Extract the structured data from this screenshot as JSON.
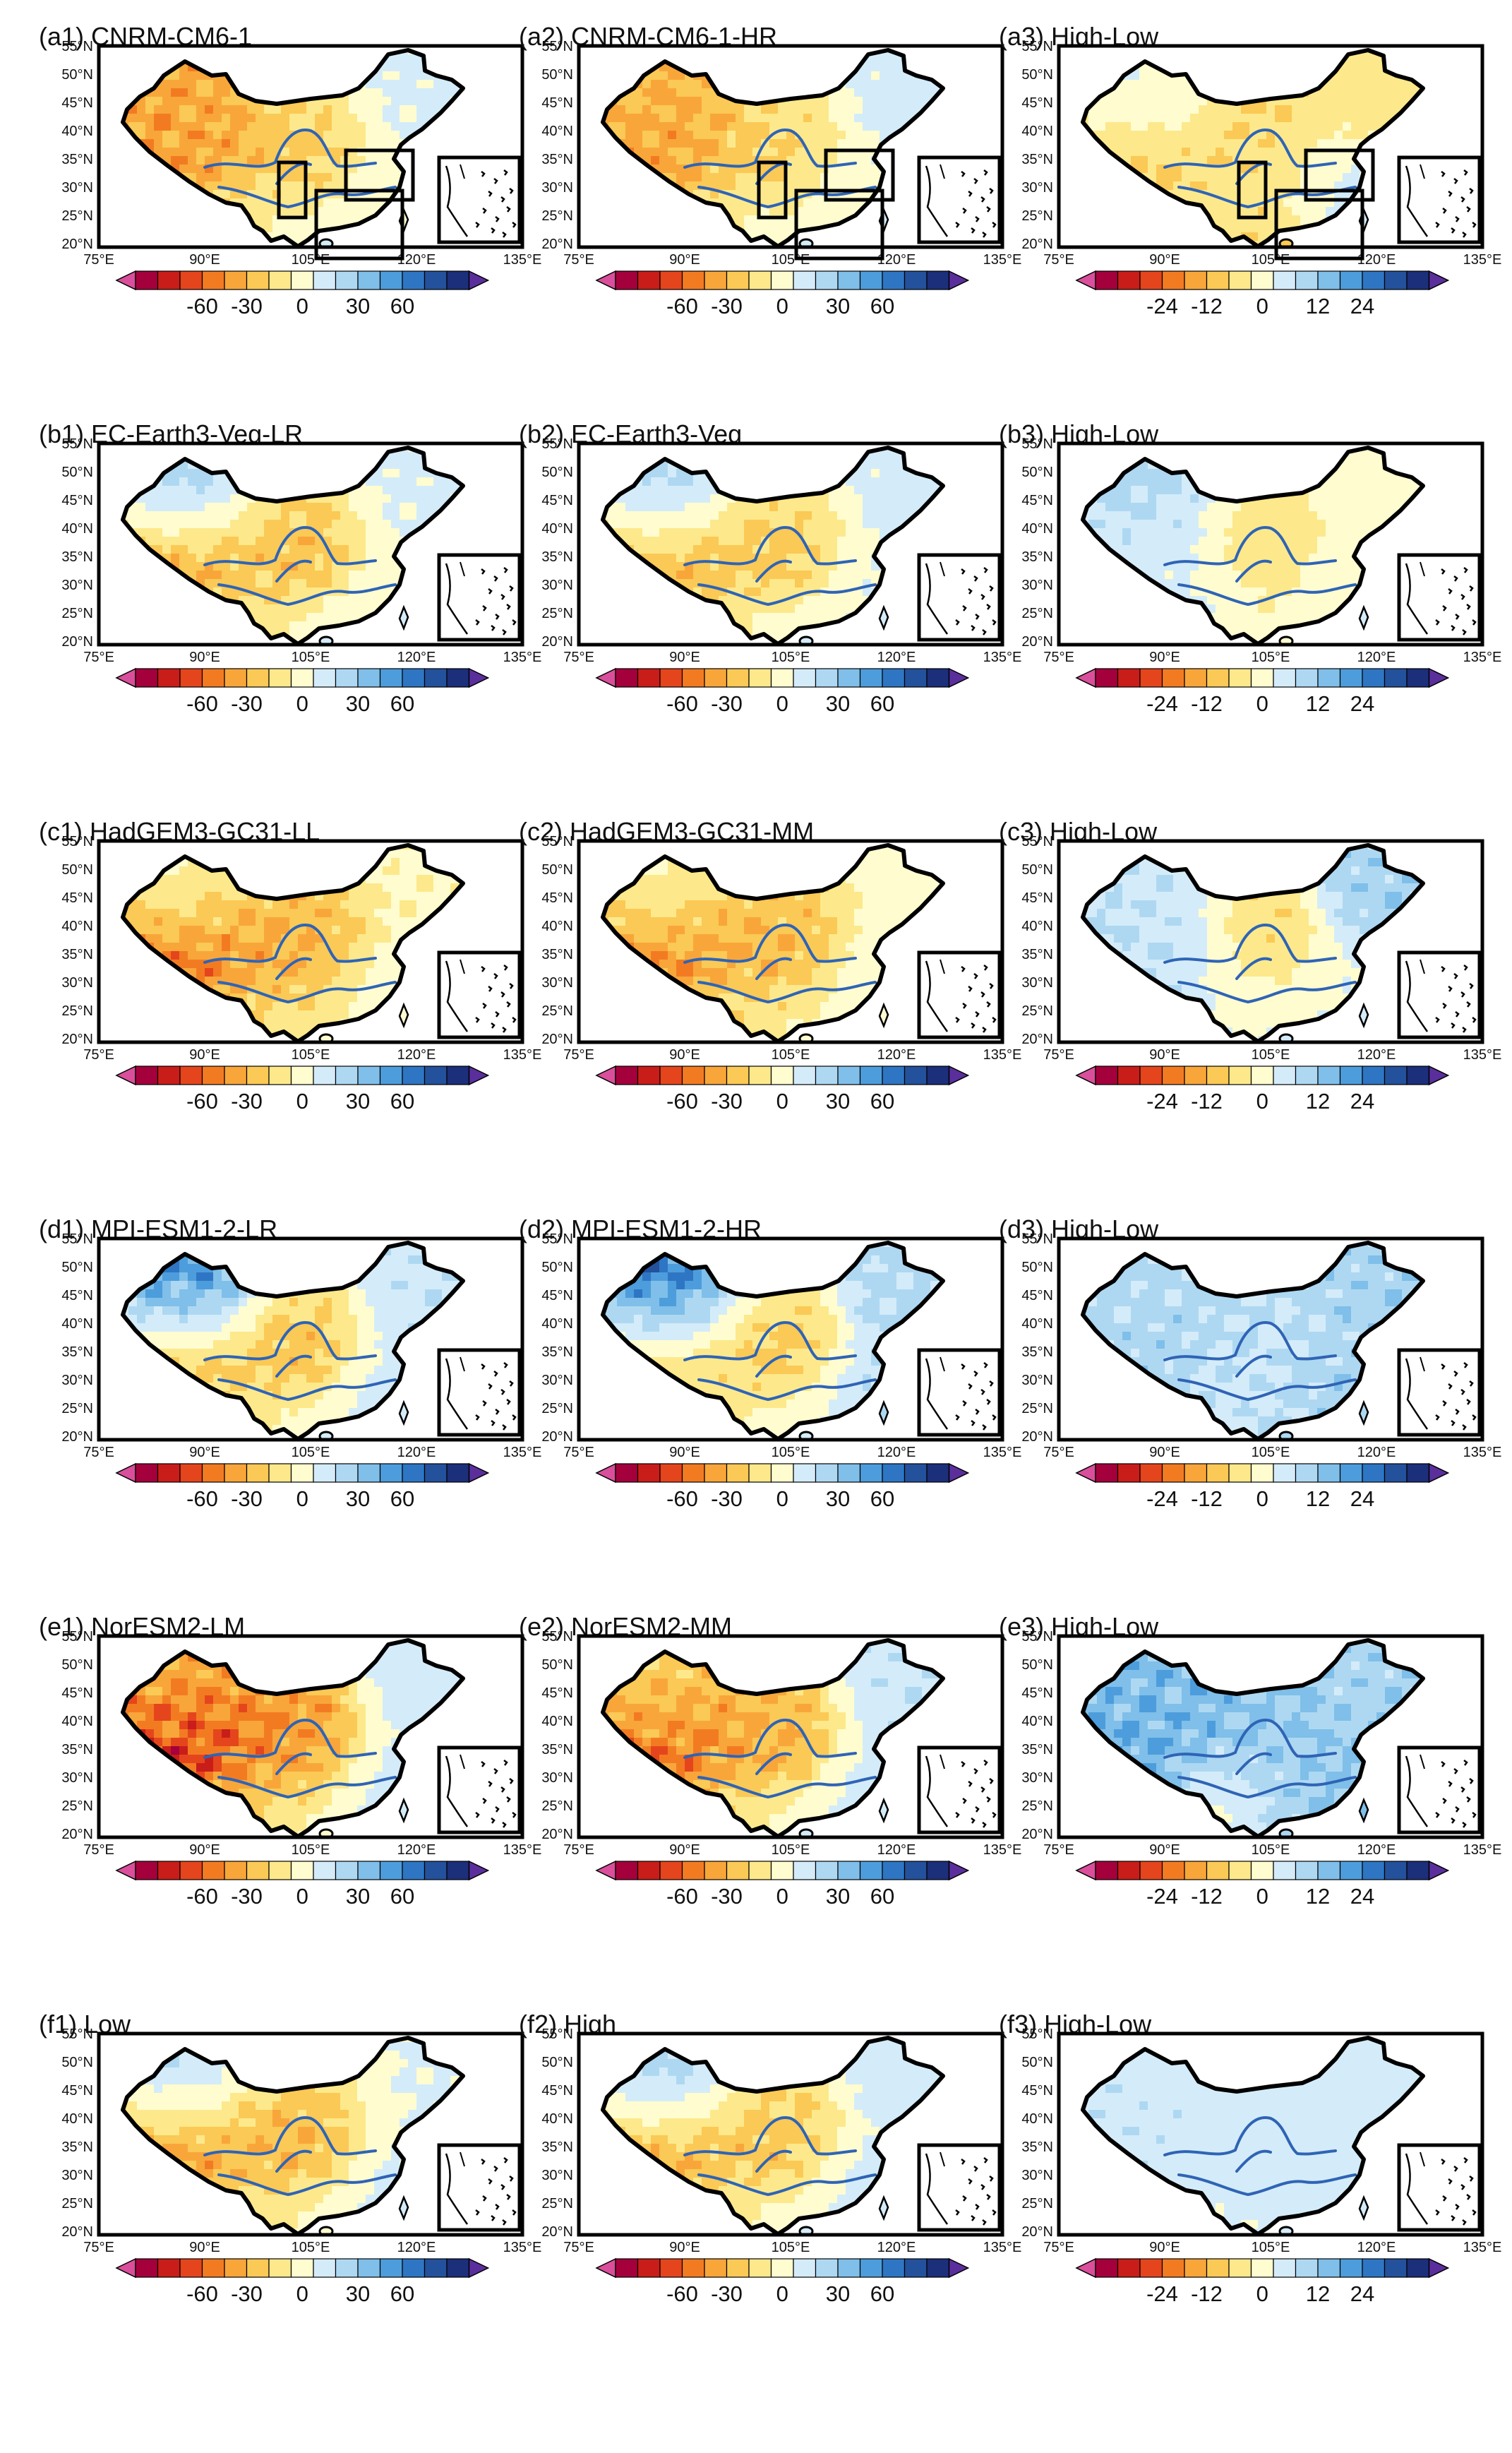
{
  "figure": {
    "lon_ticks": [
      "75°E",
      "90°E",
      "105°E",
      "120°E",
      "135°E"
    ],
    "lat_ticks": [
      "55°N",
      "50°N",
      "45°N",
      "40°N",
      "35°N",
      "30°N",
      "25°N",
      "20°N"
    ],
    "full_colorbar": {
      "labels": [
        "-60",
        "-30",
        "0",
        "30",
        "60"
      ],
      "colors": [
        "#a4003c",
        "#c91d1a",
        "#e5451c",
        "#f27b22",
        "#f8a63a",
        "#fbc955",
        "#fde98b",
        "#fffcd0",
        "#d4ecf9",
        "#aed8f2",
        "#7fbfe9",
        "#4d9ddc",
        "#2e76c4",
        "#24519c",
        "#1b2f7a"
      ],
      "min_color": "#d94f9b",
      "max_color": "#5a2f9c"
    },
    "diff_colorbar": {
      "labels": [
        "-24",
        "-12",
        "0",
        "12",
        "24"
      ],
      "colors": [
        "#a4003c",
        "#c91d1a",
        "#e5451c",
        "#f27b22",
        "#f8a63a",
        "#fbc955",
        "#fde98b",
        "#fffcd0",
        "#d4ecf9",
        "#aed8f2",
        "#7fbfe9",
        "#4d9ddc",
        "#2e76c4",
        "#24519c",
        "#1b2f7a"
      ],
      "min_color": "#d94f9b",
      "max_color": "#5a2f9c"
    },
    "panels": [
      {
        "label": "(a1) CNRM-CM6-1",
        "kind": "full",
        "pattern": [
          -25,
          -30,
          -10,
          -25,
          6,
          4,
          6,
          1
        ]
      },
      {
        "label": "(a2) CNRM-CM6-1-HR",
        "kind": "full",
        "pattern": [
          -22,
          -28,
          -8,
          -22,
          7,
          5,
          5,
          2
        ]
      },
      {
        "label": "(a3) High-Low",
        "kind": "diff",
        "pattern": [
          4,
          -8,
          -6,
          -4,
          -3,
          3,
          -6,
          -3
        ]
      },
      {
        "label": "(b1) EC-Earth3-Veg-LR",
        "kind": "full",
        "pattern": [
          30,
          -35,
          -12,
          -28,
          6,
          5,
          5,
          -3
        ]
      },
      {
        "label": "(b2) EC-Earth3-Veg",
        "kind": "full",
        "pattern": [
          28,
          -33,
          -10,
          -25,
          7,
          6,
          6,
          -2
        ]
      },
      {
        "label": "(b3) High-Low",
        "kind": "diff",
        "pattern": [
          8,
          2,
          -4,
          -6,
          1,
          2,
          -1,
          3
        ]
      },
      {
        "label": "(c1) HadGEM3-GC31-LL",
        "kind": "full",
        "pattern": [
          5,
          -45,
          -18,
          -30,
          -4,
          3,
          -3,
          -6
        ]
      },
      {
        "label": "(c2) HadGEM3-GC31-MM",
        "kind": "full",
        "pattern": [
          4,
          -40,
          -16,
          -28,
          -3,
          4,
          -2,
          -4
        ]
      },
      {
        "label": "(c3) High-Low",
        "kind": "diff",
        "pattern": [
          5,
          6,
          -6,
          -5,
          8,
          2,
          3,
          2
        ]
      },
      {
        "label": "(d1) MPI-ESM1-2-LR",
        "kind": "full",
        "pattern": [
          55,
          -30,
          -10,
          -30,
          12,
          12,
          6,
          -2
        ]
      },
      {
        "label": "(d2) MPI-ESM1-2-HR",
        "kind": "full",
        "pattern": [
          60,
          -25,
          -8,
          -28,
          16,
          15,
          8,
          0
        ]
      },
      {
        "label": "(d3) High-Low",
        "kind": "diff",
        "pattern": [
          6,
          8,
          6,
          4,
          8,
          8,
          6,
          4
        ]
      },
      {
        "label": "(e1) NorESM2-LM",
        "kind": "full",
        "pattern": [
          -20,
          -55,
          -25,
          -35,
          8,
          10,
          2,
          -5
        ]
      },
      {
        "label": "(e2) NorESM2-MM",
        "kind": "full",
        "pattern": [
          -10,
          -45,
          -18,
          -30,
          12,
          12,
          6,
          -3
        ]
      },
      {
        "label": "(e3) High-Low",
        "kind": "diff",
        "pattern": [
          10,
          14,
          10,
          8,
          8,
          10,
          6,
          -4
        ]
      },
      {
        "label": "(f1) Low",
        "kind": "full",
        "pattern": [
          25,
          -40,
          -15,
          -30,
          5,
          8,
          3,
          -3
        ]
      },
      {
        "label": "(f2) High",
        "kind": "full",
        "pattern": [
          30,
          -35,
          -12,
          -25,
          8,
          10,
          5,
          -2
        ]
      },
      {
        "label": "(f3) High-Low",
        "kind": "diff",
        "pattern": [
          4,
          5,
          3,
          5,
          3,
          4,
          2,
          1
        ]
      }
    ]
  }
}
